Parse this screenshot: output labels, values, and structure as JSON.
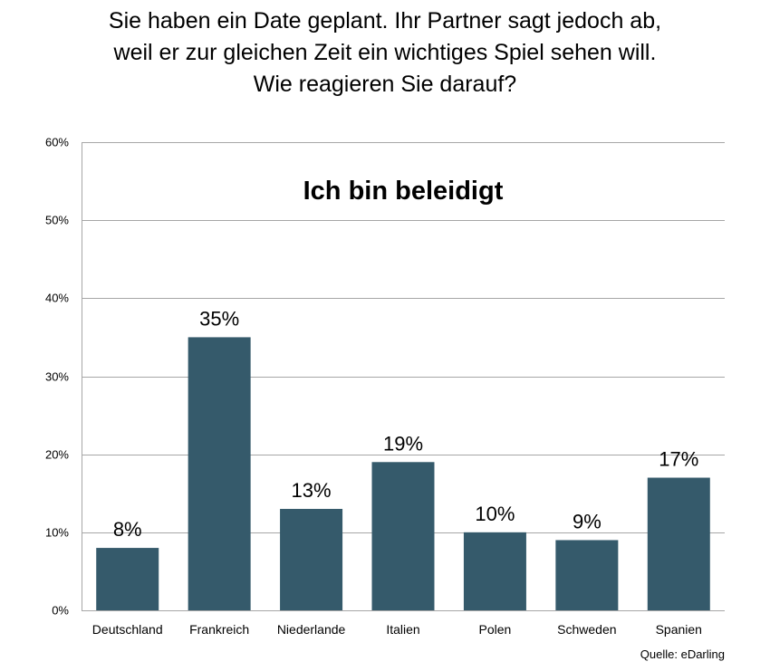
{
  "header": {
    "lines": [
      "Sie haben ein Date geplant. Ihr Partner sagt jedoch ab,",
      "weil er zur gleichen Zeit ein wichtiges Spiel sehen will.",
      "Wie reagieren Sie darauf?"
    ]
  },
  "chart_data": {
    "type": "bar",
    "title": "Ich bin beleidigt",
    "categories": [
      "Deutschland",
      "Frankreich",
      "Niederlande",
      "Italien",
      "Polen",
      "Schweden",
      "Spanien"
    ],
    "values": [
      8,
      35,
      13,
      19,
      10,
      9,
      17
    ],
    "value_labels": [
      "8%",
      "35%",
      "13%",
      "19%",
      "10%",
      "9%",
      "17%"
    ],
    "y_ticks": [
      0,
      10,
      20,
      30,
      40,
      50,
      60
    ],
    "y_tick_labels": [
      "0%",
      "10%",
      "20%",
      "30%",
      "40%",
      "50%",
      "60%"
    ],
    "ylim": [
      0,
      60
    ],
    "xlabel": "",
    "ylabel": "",
    "grid": true,
    "legend": "none",
    "bar_color": "#355a6b",
    "grid_color": "#a6a6a6"
  },
  "footer": {
    "source": "Quelle: eDarling"
  }
}
